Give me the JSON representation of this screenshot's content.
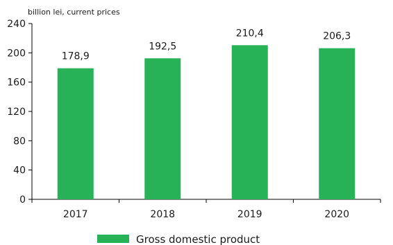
{
  "chart_data": {
    "type": "bar",
    "unit_label": "billion lei, current prices",
    "categories": [
      "2017",
      "2018",
      "2019",
      "2020"
    ],
    "series": [
      {
        "name": "Gross domestic product",
        "values": [
          178.9,
          192.5,
          210.4,
          206.3
        ],
        "labels": [
          "178,9",
          "192,5",
          "210,4",
          "206,3"
        ],
        "color": "#27b257"
      }
    ],
    "ylim": [
      0,
      240
    ],
    "yticks": [
      0,
      40,
      80,
      120,
      160,
      200,
      240
    ],
    "grid": false,
    "legend_position": "bottom"
  }
}
